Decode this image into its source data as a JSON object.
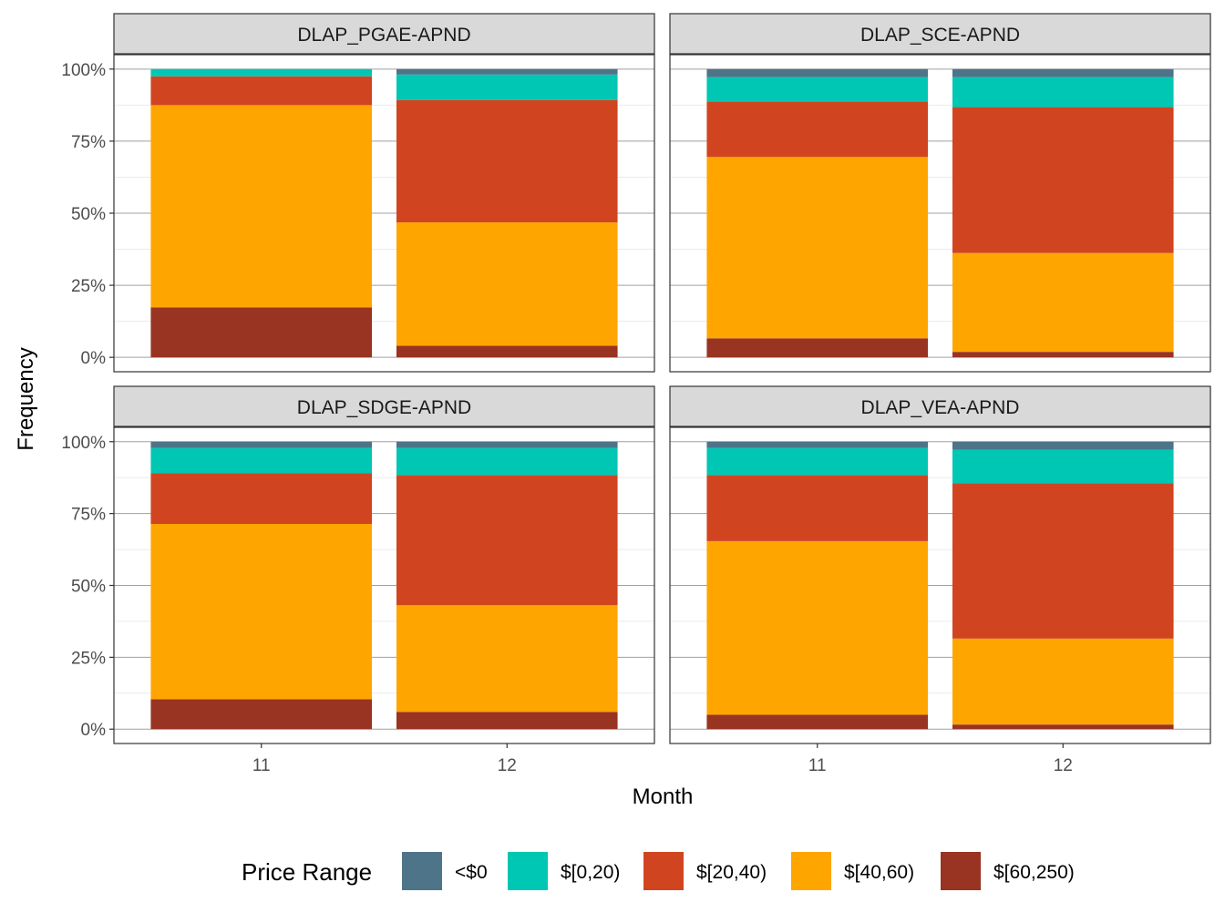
{
  "chart_data": {
    "type": "bar",
    "stacked": true,
    "xlabel": "Month",
    "ylabel": "Frequency",
    "ylim": [
      0,
      1
    ],
    "yticks": [
      "0%",
      "25%",
      "50%",
      "75%",
      "100%"
    ],
    "categories": [
      "11",
      "12"
    ],
    "grid": true,
    "legend": {
      "title": "Price Range",
      "position": "bottom",
      "entries": [
        "<$0",
        "$[0,20)",
        "$[20,40)",
        "$[40,60)",
        "$[60,250)"
      ]
    },
    "colors": {
      "<$0": "#4e7489",
      "$[0,20)": "#00c7b4",
      "$[20,40)": "#d04520",
      "$[40,60)": "#ffa500",
      "$[60,250)": "#993322"
    },
    "panels": [
      {
        "title": "DLAP_PGAE-APND",
        "series": {
          "<$0": [
            0.0,
            0.019
          ],
          "$[0,20)": [
            0.025,
            0.088
          ],
          "$[20,40)": [
            0.1,
            0.425
          ],
          "$[40,60)": [
            0.702,
            0.428
          ],
          "$[60,250)": [
            0.173,
            0.04
          ]
        }
      },
      {
        "title": "DLAP_SCE-APND",
        "series": {
          "<$0": [
            0.028,
            0.028
          ],
          "$[0,20)": [
            0.085,
            0.104
          ],
          "$[20,40)": [
            0.192,
            0.506
          ],
          "$[40,60)": [
            0.629,
            0.343
          ],
          "$[60,250)": [
            0.066,
            0.019
          ]
        }
      },
      {
        "title": "DLAP_SDGE-APND",
        "series": {
          "<$0": [
            0.022,
            0.022
          ],
          "$[0,20)": [
            0.088,
            0.094
          ],
          "$[20,40)": [
            0.176,
            0.453
          ],
          "$[40,60)": [
            0.61,
            0.371
          ],
          "$[60,250)": [
            0.104,
            0.06
          ]
        }
      },
      {
        "title": "DLAP_VEA-APND",
        "series": {
          "<$0": [
            0.022,
            0.028
          ],
          "$[0,20)": [
            0.094,
            0.116
          ],
          "$[20,40)": [
            0.23,
            0.541
          ],
          "$[40,60)": [
            0.604,
            0.299
          ],
          "$[60,250)": [
            0.05,
            0.016
          ]
        }
      }
    ]
  }
}
